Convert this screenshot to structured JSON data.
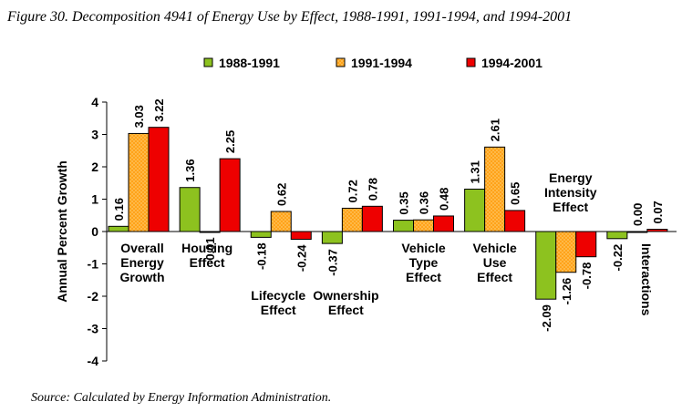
{
  "title": "Figure 30. Decomposition 4941 of Energy Use by Effect, 1988-1991, 1991-1994, and 1994-2001",
  "source": "Source: Calculated by Energy Information Administration.",
  "colors": {
    "s0": "#8dc21f",
    "s1": "#ffa31a",
    "s2": "#ee0000"
  },
  "chart_data": {
    "type": "bar",
    "title": "Figure 30. Decomposition 4941 of Energy Use by Effect, 1988-1991, 1991-1994, and 1994-2001",
    "ylabel": "Annual Percent Growth",
    "xlabel": "",
    "ylim": [
      -4,
      4
    ],
    "yticks": [
      4,
      3,
      2,
      1,
      0,
      -1,
      -2,
      -3,
      -4
    ],
    "legend": "top",
    "grid": false,
    "categories": [
      "Overall Energy Growth",
      "Housing Effect",
      "Lifecycle Effect",
      "Ownership Effect",
      "Vehicle Type Effect",
      "Vehicle Use Effect",
      "Energy Intensity Effect",
      "Interactions"
    ],
    "series": [
      {
        "name": "1988-1991",
        "values": [
          0.16,
          1.36,
          -0.18,
          -0.37,
          0.35,
          1.31,
          -2.09,
          -0.22
        ],
        "labels": [
          "0.16",
          "1.36",
          "-0.18",
          "-0.37",
          "0.35",
          "1.31",
          "-2.09",
          "-0.22"
        ]
      },
      {
        "name": "1991-1994",
        "values": [
          3.03,
          -0.01,
          0.62,
          0.72,
          0.36,
          2.61,
          -1.26,
          0.0
        ],
        "labels": [
          "3.03",
          "-0.01",
          "0.62",
          "0.72",
          "0.36",
          "2.61",
          "-1.26",
          "0.00"
        ]
      },
      {
        "name": "1994-2001",
        "values": [
          3.22,
          2.25,
          -0.24,
          0.78,
          0.48,
          0.65,
          -0.78,
          0.07
        ],
        "labels": [
          "3.22",
          "2.25",
          "-0.24",
          "0.78",
          "0.48",
          "0.65",
          "-0.78",
          "0.07"
        ]
      }
    ]
  }
}
